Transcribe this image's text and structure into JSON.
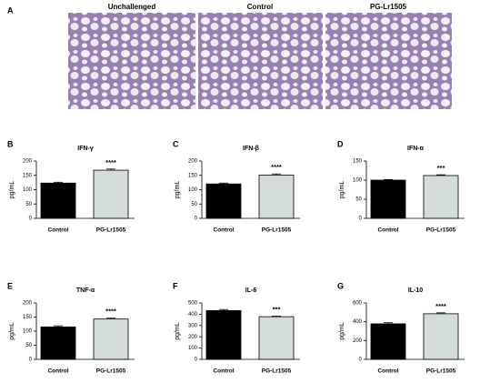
{
  "panel_a": {
    "label": "A",
    "images": [
      "Unchallenged",
      "Control",
      "PG-Lr1505"
    ]
  },
  "chart_data": [
    {
      "type": "bar",
      "panel": "B",
      "title": "IFN-γ",
      "ylabel": "pg/mL",
      "categories": [
        "Control",
        "PG-Lr1505"
      ],
      "values": [
        123,
        168
      ],
      "errors": [
        3,
        4
      ],
      "colors": [
        "#000000",
        "#d3dcdb"
      ],
      "ylim": [
        0,
        200
      ],
      "yticks": [
        0,
        50,
        100,
        150,
        200
      ],
      "significance": "****"
    },
    {
      "type": "bar",
      "panel": "C",
      "title": "IFN-β",
      "ylabel": "pg/mL",
      "categories": [
        "Control",
        "PG-Lr1505"
      ],
      "values": [
        120,
        151
      ],
      "errors": [
        3,
        4
      ],
      "colors": [
        "#000000",
        "#d3dcdb"
      ],
      "ylim": [
        0,
        200
      ],
      "yticks": [
        0,
        50,
        100,
        150,
        200
      ],
      "significance": "****"
    },
    {
      "type": "bar",
      "panel": "D",
      "title": "IFN-α",
      "ylabel": "pg/mL",
      "categories": [
        "Control",
        "PG-Lr1505"
      ],
      "values": [
        100,
        112
      ],
      "errors": [
        1.5,
        2
      ],
      "colors": [
        "#000000",
        "#d3dcdb"
      ],
      "ylim": [
        0,
        150
      ],
      "yticks": [
        0,
        50,
        100,
        150
      ],
      "significance": "***"
    },
    {
      "type": "bar",
      "panel": "E",
      "title": "TNF-α",
      "ylabel": "pg/mL",
      "categories": [
        "Control",
        "PG-Lr1505"
      ],
      "values": [
        115,
        143
      ],
      "errors": [
        4,
        3
      ],
      "colors": [
        "#000000",
        "#d3dcdb"
      ],
      "ylim": [
        0,
        200
      ],
      "yticks": [
        0,
        50,
        100,
        150,
        200
      ],
      "significance": "****"
    },
    {
      "type": "bar",
      "panel": "F",
      "title": "IL-6",
      "ylabel": "pg/mL",
      "categories": [
        "Control",
        "PG-Lr1505"
      ],
      "values": [
        432,
        378
      ],
      "errors": [
        10,
        5
      ],
      "colors": [
        "#000000",
        "#d3dcdb"
      ],
      "ylim": [
        0,
        500
      ],
      "yticks": [
        0,
        100,
        200,
        300,
        400,
        500
      ],
      "significance": "***"
    },
    {
      "type": "bar",
      "panel": "G",
      "title": "IL-10",
      "ylabel": "pg/mL",
      "categories": [
        "Control",
        "PG-Lr1505"
      ],
      "values": [
        378,
        485
      ],
      "errors": [
        12,
        10
      ],
      "colors": [
        "#000000",
        "#d3dcdb"
      ],
      "ylim": [
        0,
        600
      ],
      "yticks": [
        0,
        200,
        400,
        600
      ],
      "significance": "****"
    }
  ]
}
